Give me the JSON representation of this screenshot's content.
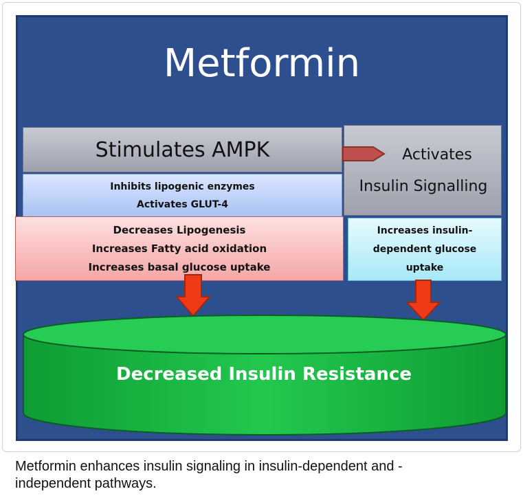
{
  "title": "Metformin",
  "ampk": {
    "label": "Stimulates AMPK"
  },
  "insulin": {
    "line1": "Activates",
    "line2": "Insulin Signalling"
  },
  "ampk_effects": [
    "Inhibits lipogenic enzymes",
    "Activates GLUT-4"
  ],
  "metabolic_effects": [
    "Decreases Lipogenesis",
    "Increases Fatty acid oxidation",
    "Increases basal glucose uptake"
  ],
  "insulin_effects": [
    "Increases insulin-",
    "dependent glucose",
    "uptake"
  ],
  "outcome": "Decreased Insulin Resistance",
  "caption": [
    "Metformin enhances insulin signaling in insulin-dependent and -",
    "independent pathways."
  ],
  "colors": {
    "panel": "#2e4f8e",
    "arrow": "#f03a17",
    "cylinder": "#1fc04a",
    "pointer": "#c0504d"
  }
}
